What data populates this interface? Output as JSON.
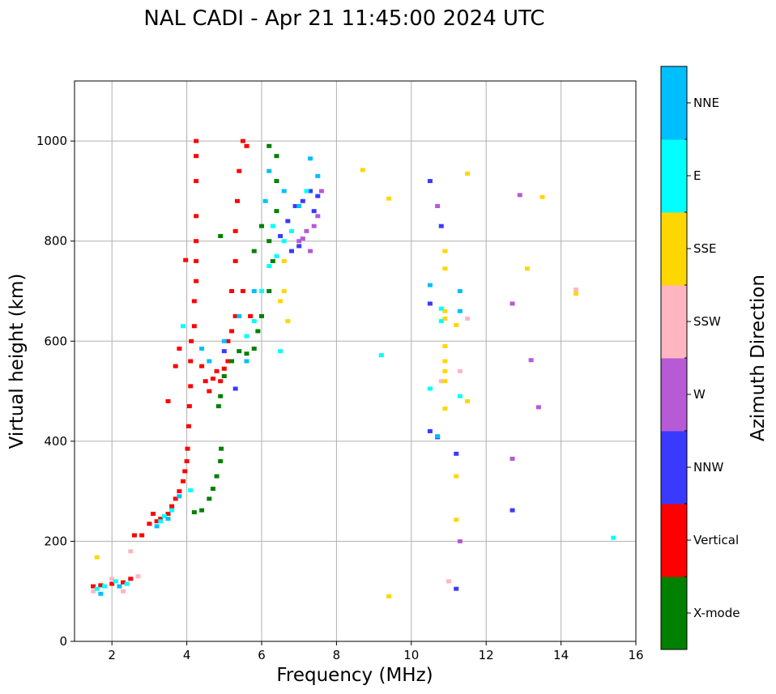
{
  "chart_data": {
    "type": "scatter",
    "title": "NAL CADI - Apr 21 11:45:00 2024 UTC",
    "xlabel": "Frequency (MHz)",
    "ylabel": "Virtual height (km)",
    "xlim": [
      1,
      16
    ],
    "ylim": [
      0,
      1120
    ],
    "xticks": [
      2,
      4,
      6,
      8,
      10,
      12,
      14,
      16
    ],
    "yticks": [
      0,
      200,
      400,
      600,
      800,
      1000
    ],
    "grid": true,
    "colorbar": {
      "label": "Azimuth Direction",
      "categories": [
        {
          "name": "X-mode",
          "color": "#008000"
        },
        {
          "name": "Vertical",
          "color": "#ff0000"
        },
        {
          "name": "NNW",
          "color": "#3a3aff"
        },
        {
          "name": "W",
          "color": "#b65ad6"
        },
        {
          "name": "SSW",
          "color": "#ffb6c1"
        },
        {
          "name": "SSE",
          "color": "#ffd700"
        },
        {
          "name": "E",
          "color": "#00ffff"
        },
        {
          "name": "NNE",
          "color": "#00bfff"
        }
      ]
    },
    "series": [
      {
        "name": "Vertical",
        "points": [
          [
            1.5,
            110
          ],
          [
            1.7,
            112
          ],
          [
            2.0,
            115
          ],
          [
            2.3,
            118
          ],
          [
            2.5,
            125
          ],
          [
            2.6,
            212
          ],
          [
            2.8,
            212
          ],
          [
            3.0,
            235
          ],
          [
            3.1,
            255
          ],
          [
            3.2,
            240
          ],
          [
            3.3,
            245
          ],
          [
            3.5,
            255
          ],
          [
            3.6,
            270
          ],
          [
            3.7,
            285
          ],
          [
            3.8,
            300
          ],
          [
            3.9,
            320
          ],
          [
            3.95,
            340
          ],
          [
            4.0,
            360
          ],
          [
            4.02,
            385
          ],
          [
            4.05,
            430
          ],
          [
            4.07,
            470
          ],
          [
            4.1,
            510
          ],
          [
            4.1,
            560
          ],
          [
            4.12,
            600
          ],
          [
            4.2,
            630
          ],
          [
            4.2,
            680
          ],
          [
            4.25,
            720
          ],
          [
            4.25,
            760
          ],
          [
            4.25,
            800
          ],
          [
            4.25,
            850
          ],
          [
            4.25,
            920
          ],
          [
            4.25,
            970
          ],
          [
            4.25,
            1000
          ],
          [
            3.97,
            762
          ],
          [
            3.8,
            585
          ],
          [
            3.7,
            550
          ],
          [
            3.5,
            480
          ],
          [
            4.4,
            550
          ],
          [
            4.5,
            520
          ],
          [
            4.6,
            500
          ],
          [
            4.7,
            525
          ],
          [
            4.8,
            540
          ],
          [
            4.9,
            520
          ],
          [
            5.0,
            545
          ],
          [
            5.1,
            560
          ],
          [
            5.2,
            620
          ],
          [
            5.2,
            700
          ],
          [
            5.3,
            760
          ],
          [
            5.3,
            820
          ],
          [
            5.35,
            880
          ],
          [
            5.4,
            940
          ],
          [
            5.5,
            1000
          ],
          [
            5.6,
            990
          ],
          [
            5.5,
            700
          ],
          [
            5.7,
            650
          ],
          [
            5.1,
            600
          ],
          [
            5.3,
            650
          ]
        ]
      },
      {
        "name": "X-mode",
        "points": [
          [
            4.2,
            258
          ],
          [
            4.4,
            262
          ],
          [
            4.6,
            285
          ],
          [
            4.7,
            305
          ],
          [
            4.8,
            330
          ],
          [
            4.9,
            360
          ],
          [
            4.92,
            385
          ],
          [
            4.85,
            470
          ],
          [
            4.9,
            490
          ],
          [
            5.0,
            530
          ],
          [
            5.2,
            560
          ],
          [
            5.4,
            580
          ],
          [
            5.6,
            575
          ],
          [
            5.8,
            585
          ],
          [
            5.9,
            620
          ],
          [
            6.0,
            650
          ],
          [
            6.2,
            700
          ],
          [
            6.3,
            760
          ],
          [
            6.2,
            800
          ],
          [
            6.4,
            860
          ],
          [
            6.4,
            920
          ],
          [
            6.4,
            970
          ],
          [
            6.2,
            990
          ],
          [
            4.9,
            810
          ],
          [
            5.8,
            780
          ],
          [
            6.0,
            830
          ]
        ]
      },
      {
        "name": "NNW",
        "points": [
          [
            6.5,
            810
          ],
          [
            6.7,
            840
          ],
          [
            6.9,
            870
          ],
          [
            7.1,
            880
          ],
          [
            7.3,
            900
          ],
          [
            7.4,
            860
          ],
          [
            7.5,
            890
          ],
          [
            7.0,
            790
          ],
          [
            6.8,
            780
          ],
          [
            10.5,
            675
          ],
          [
            10.7,
            408
          ],
          [
            10.5,
            420
          ],
          [
            10.8,
            830
          ],
          [
            10.5,
            920
          ],
          [
            11.2,
            375
          ],
          [
            11.2,
            105
          ],
          [
            12.7,
            262
          ],
          [
            5.0,
            580
          ],
          [
            5.3,
            505
          ]
        ]
      },
      {
        "name": "W",
        "points": [
          [
            7.0,
            800
          ],
          [
            7.2,
            820
          ],
          [
            7.4,
            830
          ],
          [
            7.5,
            850
          ],
          [
            7.6,
            900
          ],
          [
            7.3,
            780
          ],
          [
            7.1,
            805
          ],
          [
            12.9,
            892
          ],
          [
            12.7,
            675
          ],
          [
            13.2,
            562
          ],
          [
            13.4,
            468
          ],
          [
            12.7,
            365
          ],
          [
            11.3,
            200
          ],
          [
            10.7,
            870
          ]
        ]
      },
      {
        "name": "SSW",
        "points": [
          [
            1.5,
            100
          ],
          [
            2.0,
            125
          ],
          [
            2.3,
            100
          ],
          [
            2.5,
            180
          ],
          [
            2.7,
            130
          ],
          [
            11.0,
            120
          ],
          [
            14.4,
            703
          ],
          [
            11.5,
            645
          ],
          [
            10.8,
            520
          ],
          [
            11.3,
            540
          ]
        ]
      },
      {
        "name": "SSE",
        "points": [
          [
            1.6,
            168
          ],
          [
            8.7,
            942
          ],
          [
            9.4,
            885
          ],
          [
            10.9,
            780
          ],
          [
            10.9,
            745
          ],
          [
            10.9,
            590
          ],
          [
            10.9,
            560
          ],
          [
            10.9,
            540
          ],
          [
            10.9,
            520
          ],
          [
            10.9,
            465
          ],
          [
            10.9,
            660
          ],
          [
            10.9,
            645
          ],
          [
            11.2,
            632
          ],
          [
            11.5,
            935
          ],
          [
            13.1,
            745
          ],
          [
            13.5,
            888
          ],
          [
            14.4,
            695
          ],
          [
            11.2,
            243
          ],
          [
            11.2,
            330
          ],
          [
            9.4,
            90
          ],
          [
            11.5,
            480
          ],
          [
            6.6,
            700
          ],
          [
            6.6,
            760
          ],
          [
            6.7,
            640
          ],
          [
            6.5,
            680
          ]
        ]
      },
      {
        "name": "E",
        "points": [
          [
            1.6,
            105
          ],
          [
            1.8,
            110
          ],
          [
            2.1,
            120
          ],
          [
            2.4,
            115
          ],
          [
            3.3,
            240
          ],
          [
            3.4,
            250
          ],
          [
            3.6,
            262
          ],
          [
            4.1,
            302
          ],
          [
            3.9,
            630
          ],
          [
            5.6,
            610
          ],
          [
            5.8,
            640
          ],
          [
            6.0,
            700
          ],
          [
            6.2,
            750
          ],
          [
            6.4,
            770
          ],
          [
            6.6,
            800
          ],
          [
            6.8,
            820
          ],
          [
            7.2,
            900
          ],
          [
            9.2,
            572
          ],
          [
            10.8,
            640
          ],
          [
            10.8,
            665
          ],
          [
            11.3,
            490
          ],
          [
            15.4,
            207
          ],
          [
            10.5,
            505
          ],
          [
            6.3,
            830
          ],
          [
            6.5,
            580
          ]
        ]
      },
      {
        "name": "NNE",
        "points": [
          [
            1.7,
            95
          ],
          [
            2.2,
            110
          ],
          [
            3.2,
            230
          ],
          [
            3.5,
            245
          ],
          [
            3.8,
            290
          ],
          [
            4.4,
            585
          ],
          [
            4.6,
            560
          ],
          [
            5.0,
            600
          ],
          [
            5.4,
            650
          ],
          [
            5.6,
            560
          ],
          [
            5.8,
            700
          ],
          [
            6.1,
            880
          ],
          [
            6.2,
            940
          ],
          [
            6.6,
            900
          ],
          [
            7.0,
            870
          ],
          [
            7.5,
            930
          ],
          [
            7.3,
            965
          ],
          [
            11.3,
            660
          ],
          [
            10.5,
            712
          ],
          [
            11.3,
            700
          ],
          [
            10.7,
            410
          ]
        ]
      }
    ]
  }
}
